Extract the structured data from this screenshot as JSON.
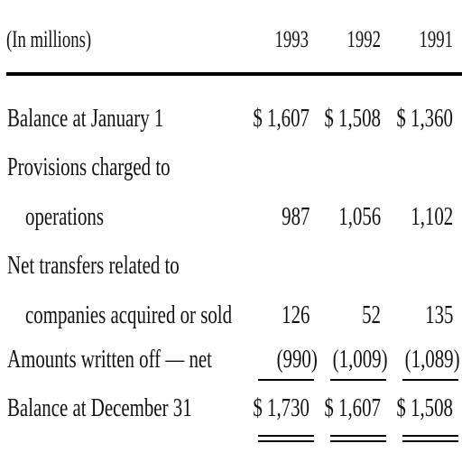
{
  "header": {
    "units": "(In millions)",
    "years": [
      "1993",
      "1992",
      "1991"
    ]
  },
  "rows": [
    {
      "label": "Balance at January 1",
      "values": [
        "$ 1,607",
        "$ 1,508",
        "$ 1,360"
      ]
    },
    {
      "label": "Provisions charged to",
      "values": []
    },
    {
      "label": "operations",
      "values": [
        "987",
        "1,056",
        "1,102"
      ]
    },
    {
      "label": "Net transfers related to",
      "values": []
    },
    {
      "label": "companies acquired or sold",
      "values": [
        "126",
        "52",
        "135"
      ]
    },
    {
      "label": "Amounts written off — net",
      "values": [
        "(990)",
        "(1,009)",
        "(1,089)"
      ]
    },
    {
      "label": "Balance at December 31",
      "values": [
        "$ 1,730",
        "$ 1,607",
        "$ 1,508"
      ]
    }
  ]
}
